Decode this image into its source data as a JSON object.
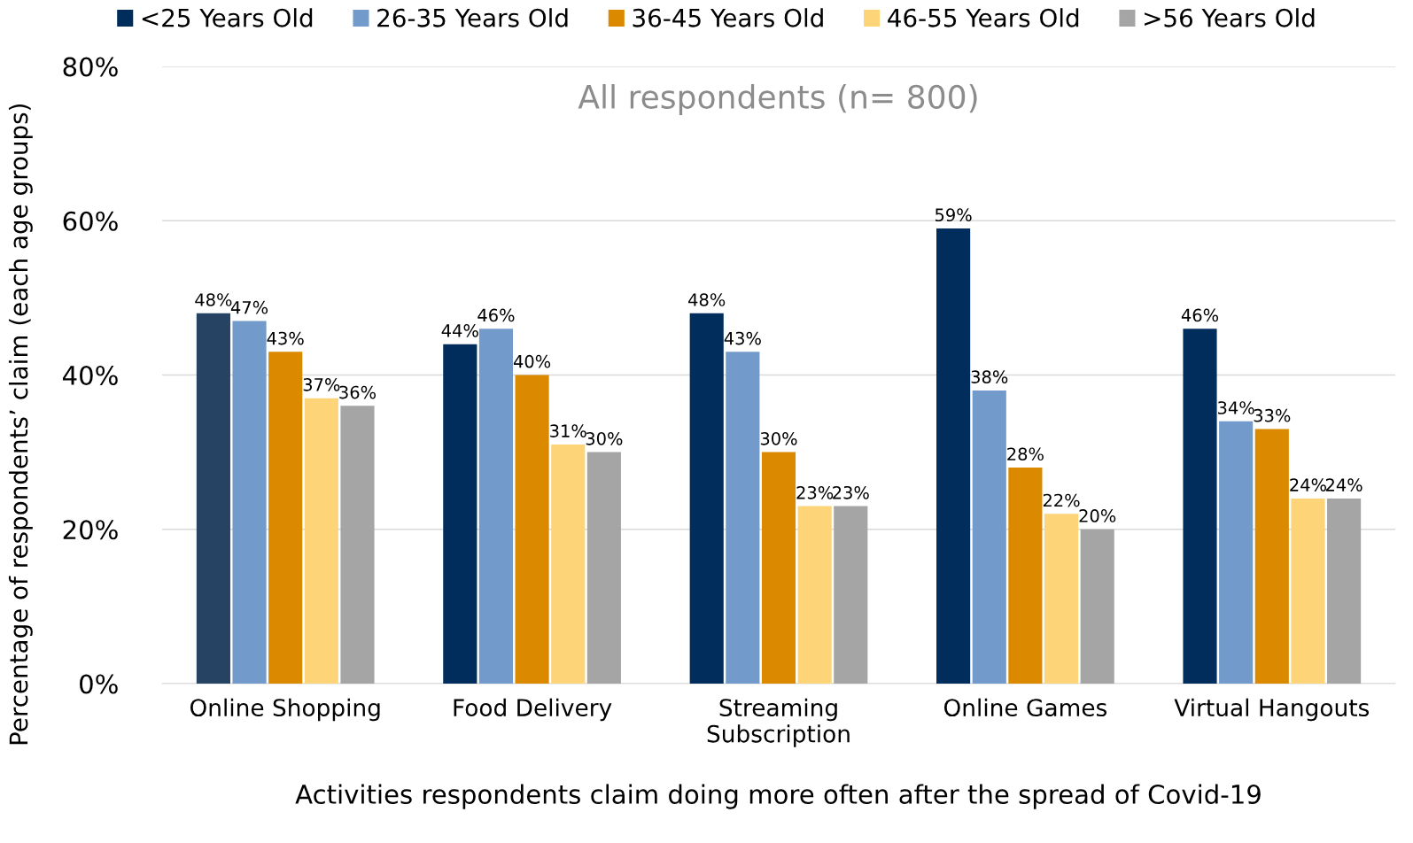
{
  "chart_data": {
    "type": "bar",
    "title": "All respondents (n= 800)",
    "xlabel": "Activities respondents claim doing more often after the spread of Covid-19",
    "ylabel": "Percentage of respondents’ claim (each age groups)",
    "categories": [
      "Online Shopping",
      "Food Delivery",
      "Streaming\nSubscription",
      "Online Games",
      "Virtual Hangouts"
    ],
    "series": [
      {
        "name": "<25 Years Old",
        "color": "#002d5c",
        "colors": [
          "#264364",
          "#002d5c",
          "#002d5c",
          "#002d5c",
          "#002d5c"
        ],
        "values": [
          48,
          44,
          48,
          59,
          46
        ],
        "value_labels": [
          "48%",
          "44%",
          "48%",
          "59%",
          "46%"
        ]
      },
      {
        "name": "26-35 Years Old",
        "color": "#729bcb",
        "values": [
          47,
          46,
          43,
          38,
          34
        ],
        "value_labels": [
          "47%",
          "46%",
          "43%",
          "38%",
          "34%"
        ]
      },
      {
        "name": "36-45 Years Old",
        "color": "#db8a00",
        "values": [
          43,
          40,
          30,
          28,
          33
        ],
        "value_labels": [
          "43%",
          "40%",
          "30%",
          "28%",
          "33%"
        ]
      },
      {
        "name": "46-55 Years Old",
        "color": "#fdd477",
        "values": [
          37,
          31,
          23,
          22,
          24
        ],
        "value_labels": [
          "37%",
          "31%",
          "23%",
          "22%",
          "24%"
        ]
      },
      {
        "name": ">56 Years Old",
        "color": "#a5a5a5",
        "values": [
          36,
          30,
          23,
          20,
          24
        ],
        "value_labels": [
          "36%",
          "30%",
          "23%",
          "20%",
          "24%"
        ]
      }
    ],
    "ylim": [
      0,
      80
    ],
    "yticks": [
      {
        "value": 0,
        "label": "0%"
      },
      {
        "value": 20,
        "label": "20%"
      },
      {
        "value": 40,
        "label": "40%"
      },
      {
        "value": 60,
        "label": "60%"
      },
      {
        "value": 80,
        "label": "80%"
      }
    ],
    "grid": "y",
    "legend": "top"
  }
}
